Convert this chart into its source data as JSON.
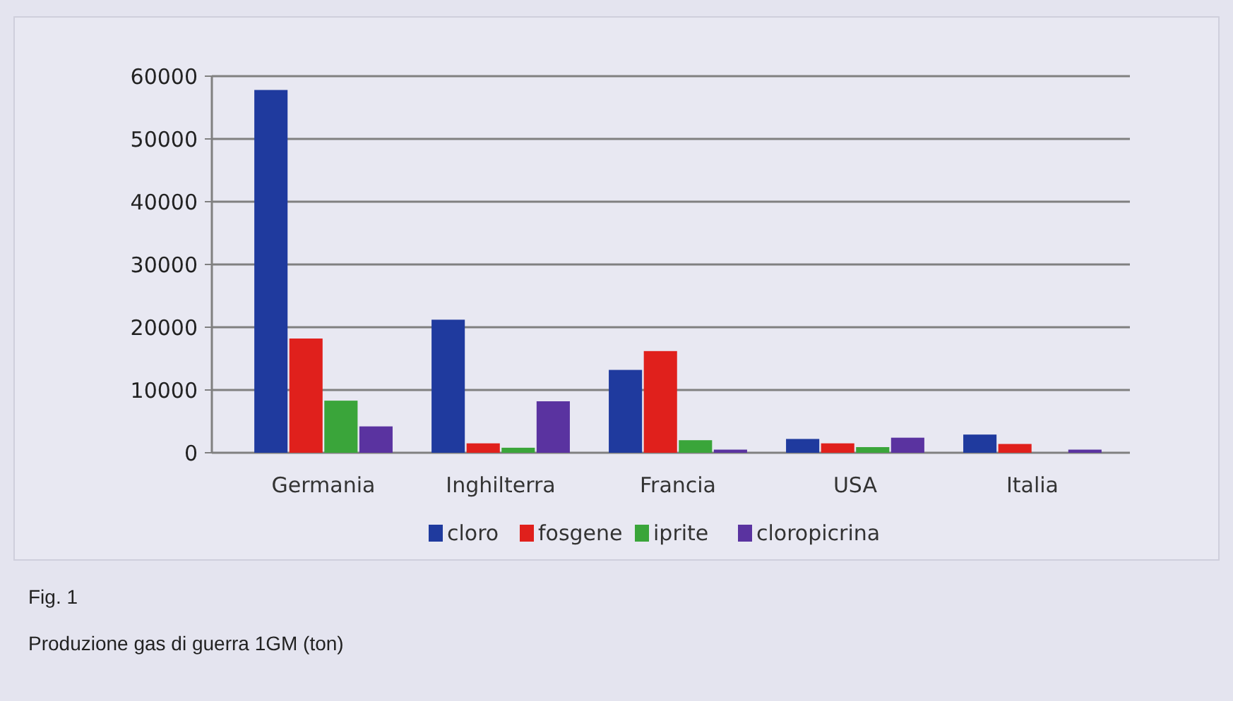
{
  "chart_data": {
    "type": "bar",
    "categories": [
      "Germania",
      "Inghilterra",
      "Francia",
      "USA",
      "Italia"
    ],
    "series": [
      {
        "name": "cloro",
        "color": "#1f3a9e",
        "values": [
          57800,
          21200,
          13200,
          2200,
          2900
        ]
      },
      {
        "name": "fosgene",
        "color": "#e0201c",
        "values": [
          18200,
          1500,
          16200,
          1500,
          1400
        ]
      },
      {
        "name": "iprite",
        "color": "#3aa53a",
        "values": [
          8300,
          800,
          2000,
          900,
          0
        ]
      },
      {
        "name": "cloropicrina",
        "color": "#5a33a0",
        "values": [
          4200,
          8200,
          500,
          2400,
          500
        ]
      }
    ],
    "ylim": [
      0,
      60000
    ],
    "yticks": [
      0,
      10000,
      20000,
      30000,
      40000,
      50000,
      60000
    ],
    "grid": "y",
    "legend": "bottom",
    "annotations": [
      "Fig. 1",
      "Produzione gas di guerra 1GM (ton)"
    ]
  }
}
